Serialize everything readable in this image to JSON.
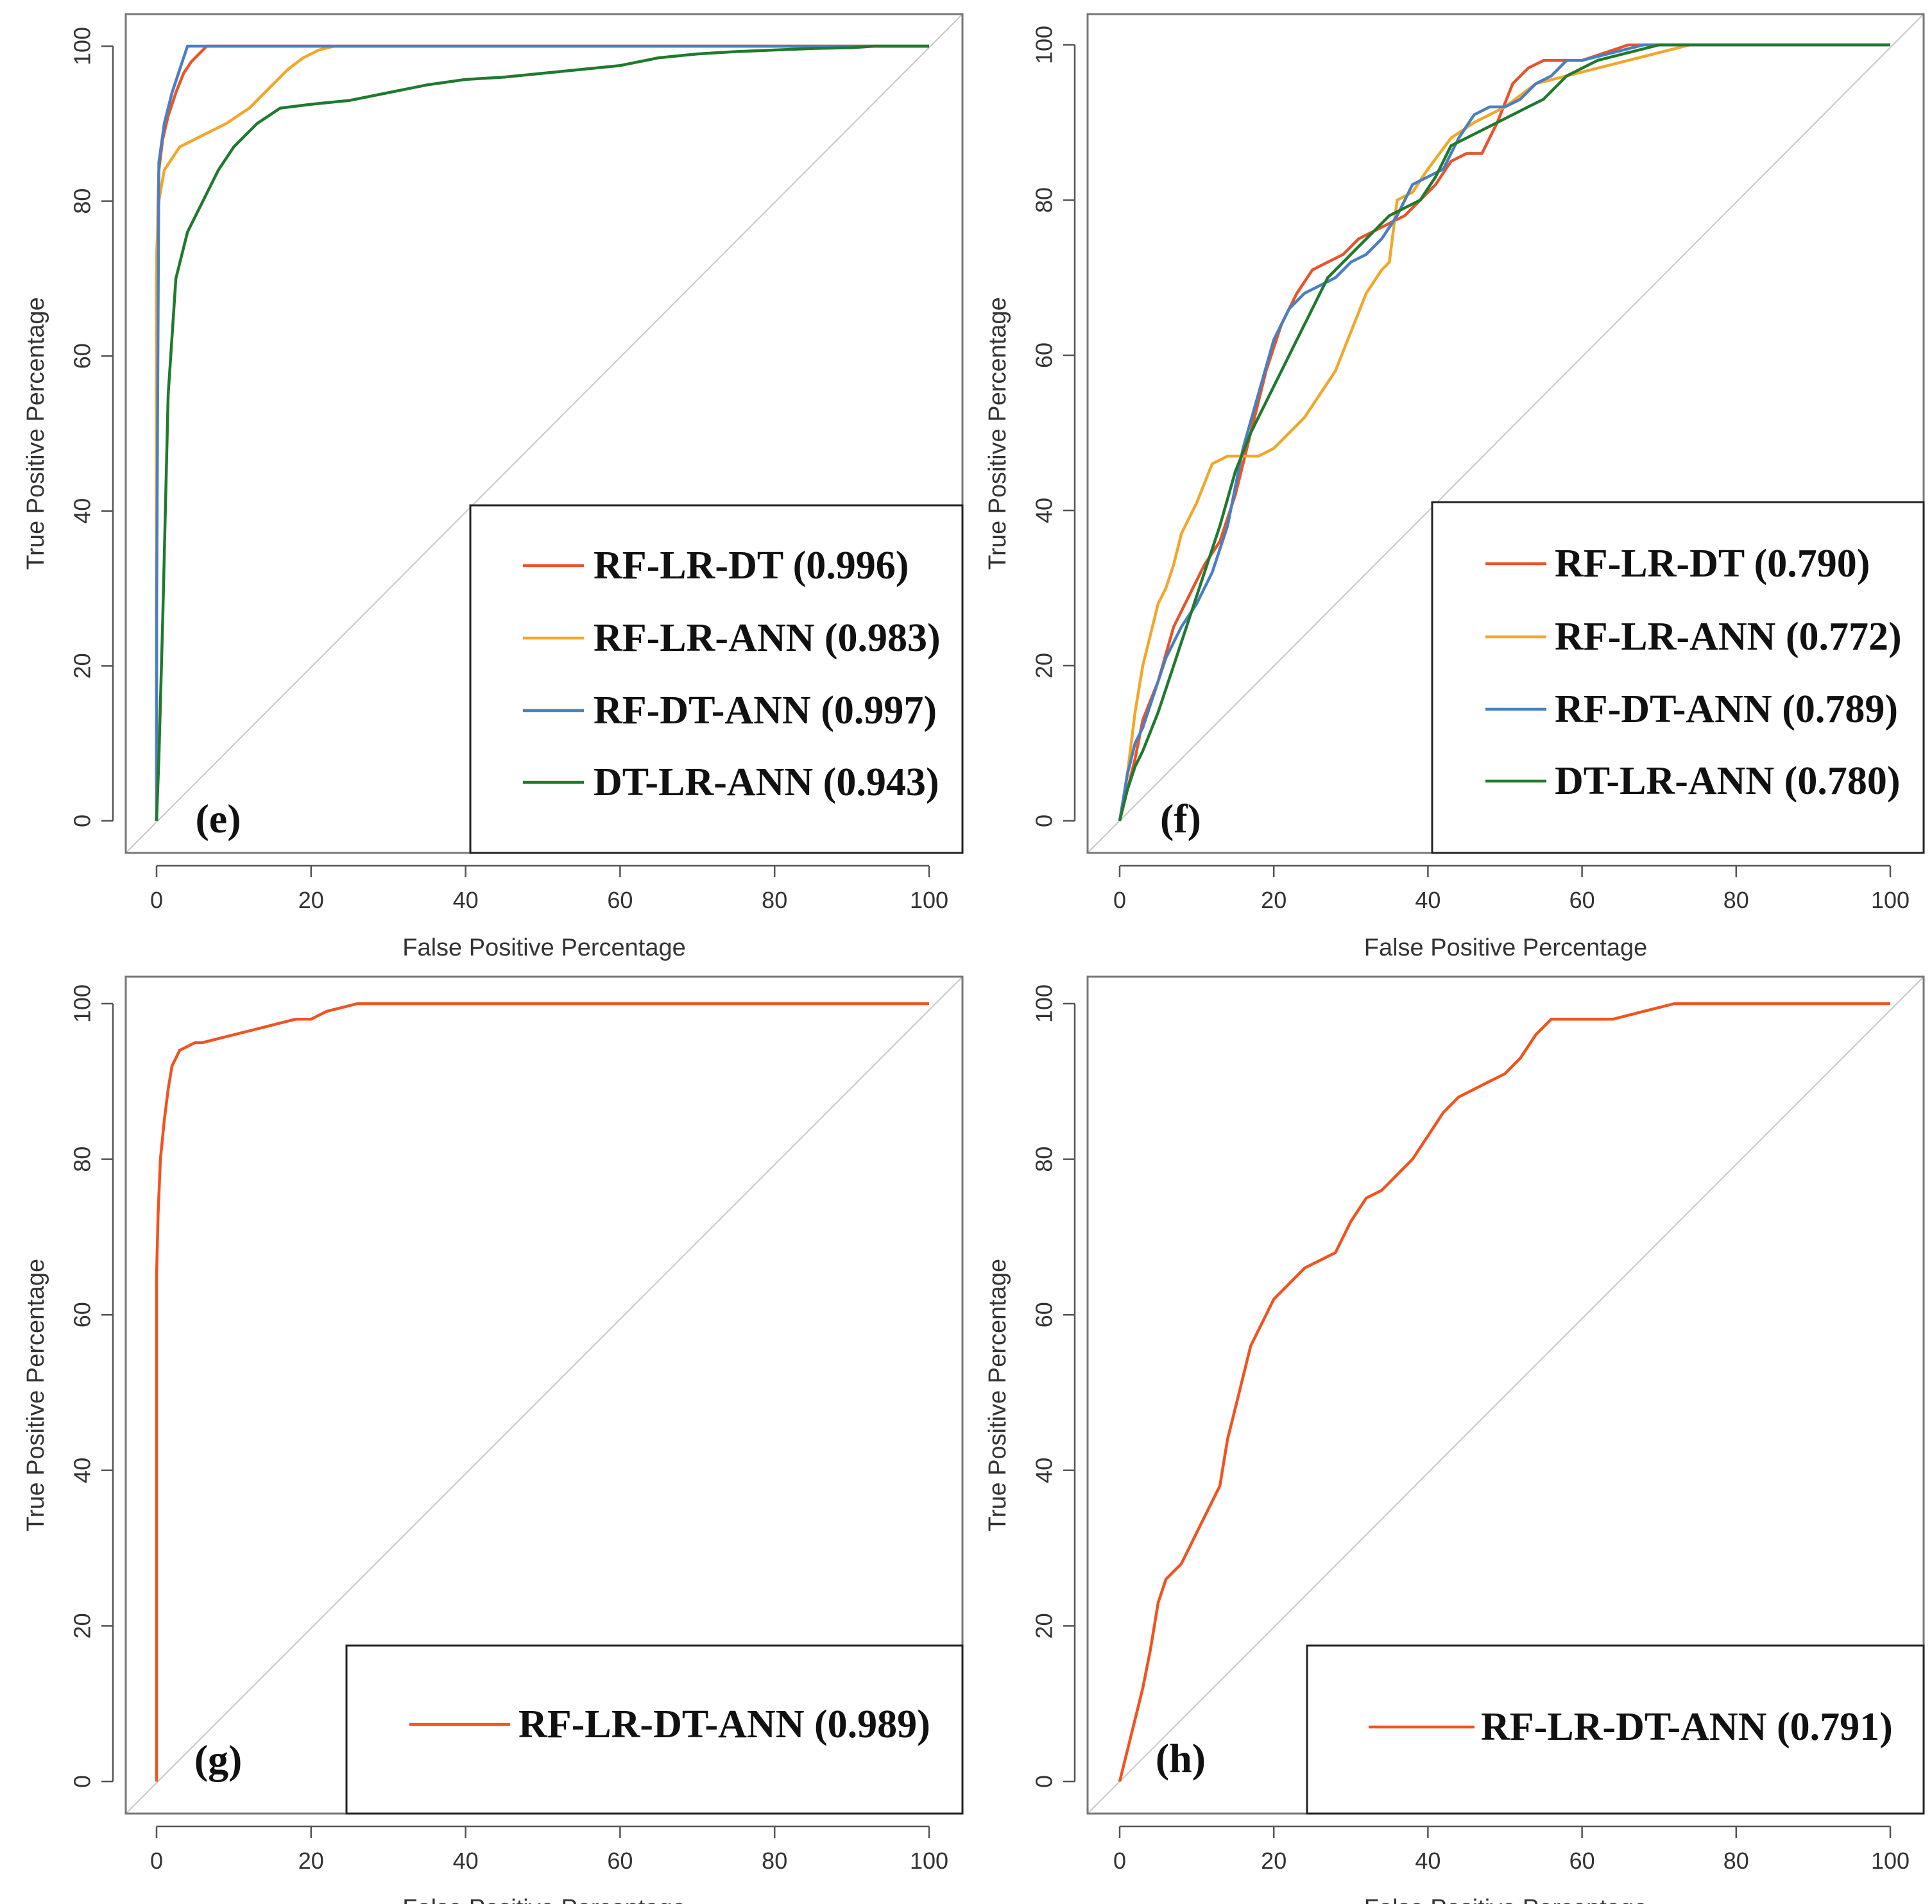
{
  "chart_data": [
    {
      "type": "line",
      "panel_label": "(e)",
      "xlabel": "False Positive Percentage",
      "ylabel": "True Positive Percentage",
      "xlim": [
        0,
        100
      ],
      "ylim": [
        0,
        100
      ],
      "xticks": [
        0,
        20,
        40,
        60,
        80,
        100
      ],
      "yticks": [
        0,
        20,
        40,
        60,
        80,
        100
      ],
      "legend_position": "bottom-right",
      "series": [
        {
          "name": "RF-LR-DT",
          "auc": "(0.996)",
          "color": "#e8542a",
          "x": [
            0,
            0,
            0.3,
            0.8,
            1.5,
            2.5,
            3.5,
            4.5,
            5.5,
            6.5,
            100
          ],
          "y": [
            0,
            70,
            84,
            88,
            91,
            94,
            96.5,
            98,
            99,
            100,
            100
          ]
        },
        {
          "name": "RF-LR-ANN",
          "auc": "(0.983)",
          "color": "#f2a72b",
          "x": [
            0,
            0,
            0.3,
            1,
            3,
            6,
            9,
            12,
            15,
            17,
            19,
            21,
            23,
            100
          ],
          "y": [
            0,
            73,
            80,
            84,
            87,
            88.5,
            90,
            92,
            95,
            97,
            98.5,
            99.5,
            100,
            100
          ]
        },
        {
          "name": "RF-DT-ANN",
          "auc": "(0.997)",
          "color": "#4a7fc1",
          "x": [
            0,
            0,
            0.3,
            1,
            2,
            3,
            4,
            100
          ],
          "y": [
            0,
            26,
            85,
            90,
            94,
            97,
            100,
            100
          ]
        },
        {
          "name": "DT-LR-ANN",
          "auc": "(0.943)",
          "color": "#1f7a2e",
          "x": [
            0,
            0.3,
            0.8,
            1.5,
            2.5,
            4,
            6,
            8,
            10,
            13,
            16,
            20,
            25,
            30,
            35,
            40,
            45,
            50,
            55,
            60,
            65,
            70,
            75,
            80,
            85,
            90,
            93,
            100
          ],
          "y": [
            0,
            8,
            26,
            55,
            70,
            76,
            80,
            84,
            87,
            90,
            92,
            92.5,
            93,
            94,
            95,
            95.7,
            96,
            96.5,
            97,
            97.5,
            98.5,
            99,
            99.3,
            99.5,
            99.7,
            99.8,
            100,
            100
          ]
        }
      ]
    },
    {
      "type": "line",
      "panel_label": "(f)",
      "xlabel": "False Positive Percentage",
      "ylabel": "True Positive Percentage",
      "xlim": [
        0,
        100
      ],
      "ylim": [
        0,
        100
      ],
      "xticks": [
        0,
        20,
        40,
        60,
        80,
        100
      ],
      "yticks": [
        0,
        20,
        40,
        60,
        80,
        100
      ],
      "legend_position": "bottom-right",
      "series": [
        {
          "name": "RF-LR-DT",
          "auc": "(0.790)",
          "color": "#e8542a",
          "x": [
            0,
            1,
            2,
            3,
            5,
            7,
            9,
            11,
            13,
            15,
            17,
            19,
            21,
            23,
            25,
            27,
            29,
            31,
            33,
            35,
            37,
            39,
            41,
            43,
            45,
            47,
            49,
            51,
            53,
            55,
            57,
            60,
            63,
            66,
            70,
            100
          ],
          "y": [
            0,
            4,
            8,
            13,
            18,
            25,
            29,
            33,
            36,
            42,
            50,
            58,
            64,
            68,
            71,
            72,
            73,
            75,
            76,
            77,
            78,
            80,
            82,
            85,
            86,
            86,
            90,
            95,
            97,
            98,
            98,
            98,
            99,
            100,
            100,
            100
          ]
        },
        {
          "name": "RF-LR-ANN",
          "auc": "(0.772)",
          "color": "#f2a72b",
          "x": [
            0,
            1,
            2,
            3,
            4,
            5,
            6,
            7,
            8,
            10,
            12,
            14,
            16,
            18,
            20,
            22,
            24,
            26,
            28,
            30,
            32,
            34,
            35,
            36,
            38,
            40,
            43,
            46,
            50,
            54,
            58,
            62,
            66,
            70,
            74
          ],
          "y": [
            0,
            6,
            14,
            20,
            24,
            28,
            30,
            33,
            37,
            41,
            46,
            47,
            47,
            47,
            48,
            50,
            52,
            55,
            58,
            63,
            68,
            71,
            72,
            80,
            81,
            84,
            88,
            90,
            92,
            95,
            96,
            97,
            98,
            99,
            100
          ]
        },
        {
          "name": "RF-DT-ANN",
          "auc": "(0.789)",
          "color": "#4a7fc1",
          "x": [
            0,
            1,
            2,
            3,
            4,
            6,
            8,
            10,
            12,
            14,
            16,
            18,
            20,
            22,
            24,
            26,
            28,
            30,
            32,
            34,
            36,
            38,
            40,
            42,
            44,
            46,
            48,
            50,
            52,
            54,
            56,
            58,
            60,
            64,
            68,
            100
          ],
          "y": [
            0,
            6,
            10,
            12,
            15,
            21,
            25,
            28,
            32,
            38,
            48,
            55,
            62,
            66,
            68,
            69,
            70,
            72,
            73,
            75,
            78,
            82,
            83,
            84,
            88,
            91,
            92,
            92,
            93,
            95,
            96,
            98,
            98,
            99,
            100,
            100
          ]
        },
        {
          "name": "DT-LR-ANN",
          "auc": "(0.780)",
          "color": "#1f7a2e",
          "x": [
            0,
            1,
            2,
            3,
            5,
            7,
            9,
            11,
            13,
            15,
            17,
            19,
            21,
            23,
            25,
            27,
            29,
            31,
            33,
            35,
            37,
            39,
            41,
            43,
            45,
            47,
            49,
            51,
            53,
            55,
            58,
            62,
            66,
            70,
            100
          ],
          "y": [
            0,
            4,
            7,
            9,
            14,
            20,
            26,
            32,
            38,
            45,
            50,
            54,
            58,
            62,
            66,
            70,
            72,
            74,
            76,
            78,
            79,
            80,
            83,
            87,
            88,
            89,
            90,
            91,
            92,
            93,
            96,
            98,
            99,
            100,
            100
          ]
        }
      ]
    },
    {
      "type": "line",
      "panel_label": "(g)",
      "xlabel": "False Positive Percentage",
      "ylabel": "True Positive Percentage",
      "xlim": [
        0,
        100
      ],
      "ylim": [
        0,
        100
      ],
      "xticks": [
        0,
        20,
        40,
        60,
        80,
        100
      ],
      "yticks": [
        0,
        20,
        40,
        60,
        80,
        100
      ],
      "legend_position": "bottom-right",
      "series": [
        {
          "name": "RF-LR-DT-ANN",
          "auc": "(0.989)",
          "color": "#f0541e",
          "x": [
            0,
            0,
            0.2,
            0.5,
            1,
            1.5,
            2,
            3,
            4,
            5,
            6,
            8,
            10,
            12,
            14,
            16,
            18,
            20,
            22,
            24,
            26,
            100
          ],
          "y": [
            0,
            65,
            73,
            80,
            85,
            89,
            92,
            94,
            94.5,
            95,
            95,
            95.5,
            96,
            96.5,
            97,
            97.5,
            98,
            98,
            99,
            99.5,
            100,
            100
          ]
        }
      ]
    },
    {
      "type": "line",
      "panel_label": "(h)",
      "xlabel": "False Positive Percentage",
      "ylabel": "True Positive Percentage",
      "xlim": [
        0,
        100
      ],
      "ylim": [
        0,
        100
      ],
      "xticks": [
        0,
        20,
        40,
        60,
        80,
        100
      ],
      "yticks": [
        0,
        20,
        40,
        60,
        80,
        100
      ],
      "legend_position": "bottom-right",
      "series": [
        {
          "name": "RF-LR-DT-ANN",
          "auc": "(0.791)",
          "color": "#f0541e",
          "x": [
            0,
            0.5,
            1,
            2,
            3,
            4,
            5,
            6,
            7,
            8,
            10,
            11,
            12,
            13,
            14,
            15,
            16,
            17,
            18,
            19,
            20,
            22,
            24,
            26,
            28,
            30,
            32,
            34,
            36,
            38,
            40,
            42,
            44,
            46,
            48,
            50,
            52,
            54,
            56,
            60,
            64,
            68,
            72,
            76,
            80,
            100
          ],
          "y": [
            0,
            2,
            4,
            8,
            12,
            17,
            23,
            26,
            27,
            28,
            32,
            34,
            36,
            38,
            44,
            48,
            52,
            56,
            58,
            60,
            62,
            64,
            66,
            67,
            68,
            72,
            75,
            76,
            78,
            80,
            83,
            86,
            88,
            89,
            90,
            91,
            93,
            96,
            98,
            98,
            98,
            99,
            100,
            100,
            100,
            100
          ]
        }
      ]
    }
  ]
}
